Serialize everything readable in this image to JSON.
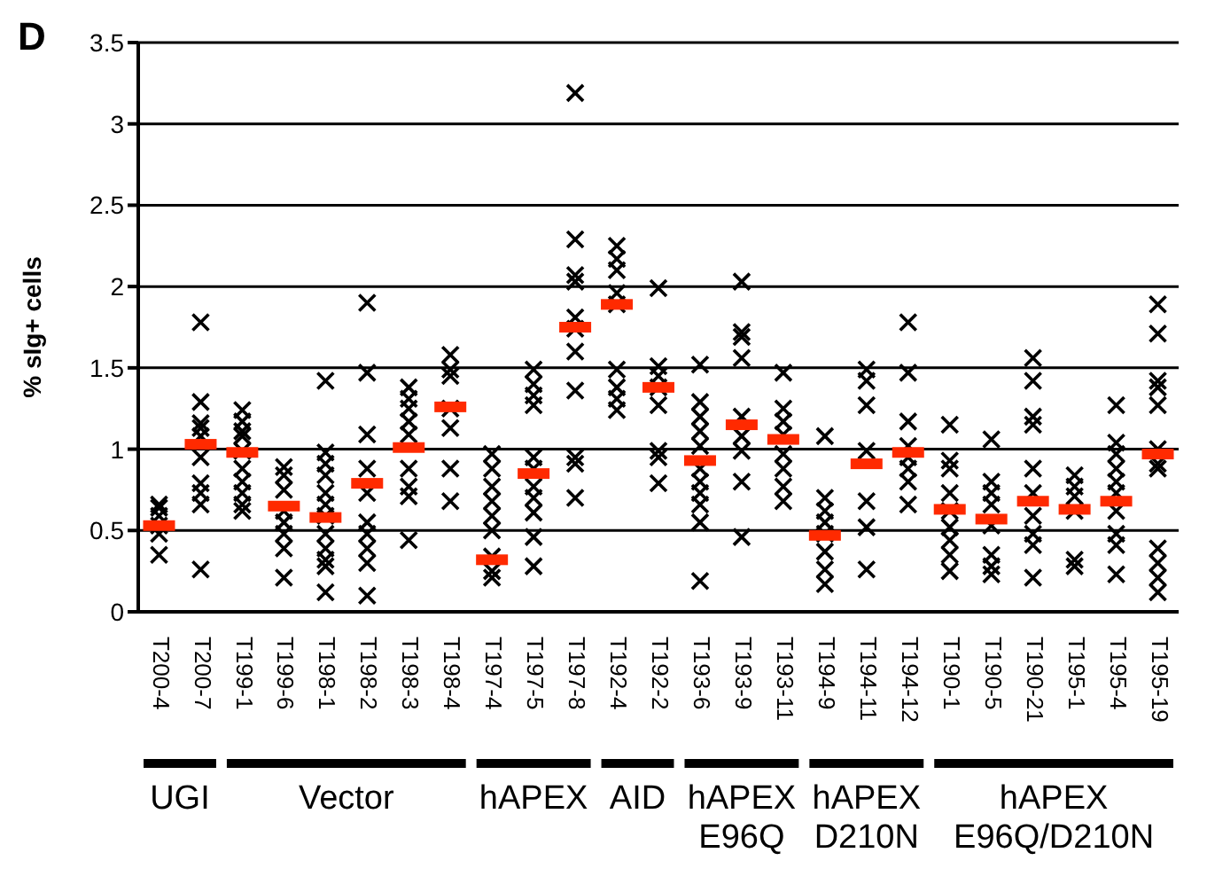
{
  "chart_data": {
    "type": "scatter",
    "ylabel": "% sIg+ cells",
    "annotations": [
      "D",
      "UGI",
      "Vector",
      "hAPEX",
      "AID",
      "hAPEX\nE96Q",
      "hAPEX\nD210N",
      "hAPEX\nE96Q/D210N"
    ],
    "categories": [
      "T200-4",
      "T200-7",
      "T199-1",
      "T199-6",
      "T198-1",
      "T198-2",
      "T198-3",
      "T198-4",
      "T197-4",
      "T197-5",
      "T197-8",
      "T192-4",
      "T192-2",
      "T193-6",
      "T193-9",
      "T193-11",
      "T194-9",
      "T194-11",
      "T194-12",
      "T190-1",
      "T190-5",
      "T190-21",
      "T195-1",
      "T195-4",
      "T195-19"
    ],
    "ylim": [
      0,
      3.5
    ],
    "yticks": [
      0,
      0.5,
      1,
      1.5,
      2,
      2.5,
      3,
      3.5
    ],
    "grid": "y",
    "series": [
      {
        "marker": "cross",
        "color": "#000000",
        "x": [
          "T200-4",
          "T200-4",
          "T200-4",
          "T200-4",
          "T200-4",
          "T200-4",
          "T200-7",
          "T200-7",
          "T200-7",
          "T200-7",
          "T200-7",
          "T200-7",
          "T200-7",
          "T200-7",
          "T200-7",
          "T200-7",
          "T199-1",
          "T199-1",
          "T199-1",
          "T199-1",
          "T199-1",
          "T199-1",
          "T199-1",
          "T199-1",
          "T199-1",
          "T199-1",
          "T199-6",
          "T199-6",
          "T199-6",
          "T199-6",
          "T199-6",
          "T199-6",
          "T199-6",
          "T199-6",
          "T198-1",
          "T198-1",
          "T198-1",
          "T198-1",
          "T198-1",
          "T198-1",
          "T198-1",
          "T198-1",
          "T198-1",
          "T198-1",
          "T198-1",
          "T198-1",
          "T198-2",
          "T198-2",
          "T198-2",
          "T198-2",
          "T198-2",
          "T198-2",
          "T198-2",
          "T198-2",
          "T198-2",
          "T198-2",
          "T198-3",
          "T198-3",
          "T198-3",
          "T198-3",
          "T198-3",
          "T198-3",
          "T198-3",
          "T198-3",
          "T198-3",
          "T198-4",
          "T198-4",
          "T198-4",
          "T198-4",
          "T198-4",
          "T198-4",
          "T198-4",
          "T197-4",
          "T197-4",
          "T197-4",
          "T197-4",
          "T197-4",
          "T197-4",
          "T197-4",
          "T197-4",
          "T197-4",
          "T197-5",
          "T197-5",
          "T197-5",
          "T197-5",
          "T197-5",
          "T197-5",
          "T197-5",
          "T197-5",
          "T197-5",
          "T197-5",
          "T197-5",
          "T197-8",
          "T197-8",
          "T197-8",
          "T197-8",
          "T197-8",
          "T197-8",
          "T197-8",
          "T197-8",
          "T197-8",
          "T197-8",
          "T197-8",
          "T192-4",
          "T192-4",
          "T192-4",
          "T192-4",
          "T192-4",
          "T192-4",
          "T192-4",
          "T192-4",
          "T192-4",
          "T192-2",
          "T192-2",
          "T192-2",
          "T192-2",
          "T192-2",
          "T192-2",
          "T192-2",
          "T192-2",
          "T193-6",
          "T193-6",
          "T193-6",
          "T193-6",
          "T193-6",
          "T193-6",
          "T193-6",
          "T193-6",
          "T193-6",
          "T193-6",
          "T193-6",
          "T193-9",
          "T193-9",
          "T193-9",
          "T193-9",
          "T193-9",
          "T193-9",
          "T193-9",
          "T193-9",
          "T193-9",
          "T193-11",
          "T193-11",
          "T193-11",
          "T193-11",
          "T193-11",
          "T193-11",
          "T193-11",
          "T193-11",
          "T194-9",
          "T194-9",
          "T194-9",
          "T194-9",
          "T194-9",
          "T194-9",
          "T194-9",
          "T194-9",
          "T194-11",
          "T194-11",
          "T194-11",
          "T194-11",
          "T194-11",
          "T194-11",
          "T194-11",
          "T194-12",
          "T194-12",
          "T194-12",
          "T194-12",
          "T194-12",
          "T194-12",
          "T194-12",
          "T194-12",
          "T190-1",
          "T190-1",
          "T190-1",
          "T190-1",
          "T190-1",
          "T190-1",
          "T190-1",
          "T190-1",
          "T190-1",
          "T190-5",
          "T190-5",
          "T190-5",
          "T190-5",
          "T190-5",
          "T190-5",
          "T190-5",
          "T190-5",
          "T190-21",
          "T190-21",
          "T190-21",
          "T190-21",
          "T190-21",
          "T190-21",
          "T190-21",
          "T190-21",
          "T190-21",
          "T190-21",
          "T195-1",
          "T195-1",
          "T195-1",
          "T195-1",
          "T195-1",
          "T195-1",
          "T195-4",
          "T195-4",
          "T195-4",
          "T195-4",
          "T195-4",
          "T195-4",
          "T195-4",
          "T195-4",
          "T195-4",
          "T195-4",
          "T195-19",
          "T195-19",
          "T195-19",
          "T195-19",
          "T195-19",
          "T195-19",
          "T195-19",
          "T195-19",
          "T195-19",
          "T195-19",
          "T195-19",
          "T195-19"
        ],
        "values": [
          0.35,
          0.48,
          0.59,
          0.64,
          0.66,
          0.53,
          1.78,
          1.29,
          1.16,
          1.13,
          1.08,
          0.95,
          0.79,
          0.73,
          0.66,
          0.26,
          1.24,
          1.17,
          1.11,
          1.08,
          0.99,
          0.88,
          0.8,
          0.73,
          0.66,
          0.62,
          0.89,
          0.84,
          0.75,
          0.62,
          0.55,
          0.48,
          0.39,
          0.21,
          1.42,
          0.98,
          0.91,
          0.84,
          0.73,
          0.66,
          0.59,
          0.48,
          0.39,
          0.32,
          0.28,
          0.12,
          1.9,
          1.47,
          1.09,
          0.88,
          0.73,
          0.55,
          0.48,
          0.39,
          0.3,
          0.1,
          1.38,
          1.31,
          1.25,
          1.17,
          1.09,
          0.88,
          0.77,
          0.71,
          0.44,
          1.58,
          1.49,
          1.45,
          1.25,
          1.13,
          0.88,
          0.68,
          0.97,
          0.88,
          0.77,
          0.68,
          0.59,
          0.5,
          0.34,
          0.25,
          0.21,
          1.49,
          1.4,
          1.33,
          1.27,
          0.95,
          0.88,
          0.77,
          0.7,
          0.61,
          0.46,
          0.28,
          3.19,
          2.29,
          2.07,
          2.03,
          1.81,
          1.74,
          1.6,
          1.36,
          0.95,
          0.91,
          0.7,
          2.25,
          2.17,
          2.1,
          1.96,
          1.89,
          1.49,
          1.38,
          1.31,
          1.24,
          1.99,
          1.51,
          1.45,
          1.38,
          1.27,
          0.99,
          0.95,
          0.79,
          1.52,
          1.29,
          1.2,
          1.11,
          1.02,
          0.88,
          0.8,
          0.73,
          0.66,
          0.55,
          0.19,
          2.03,
          1.72,
          1.69,
          1.56,
          1.2,
          1.08,
          0.99,
          0.8,
          0.46,
          1.47,
          1.25,
          1.17,
          1.09,
          0.97,
          0.88,
          0.77,
          0.68,
          1.08,
          0.7,
          0.62,
          0.55,
          0.48,
          0.37,
          0.26,
          0.17,
          1.49,
          1.42,
          1.27,
          0.99,
          0.68,
          0.52,
          0.26,
          1.78,
          1.47,
          1.17,
          1.02,
          0.95,
          0.88,
          0.8,
          0.66,
          1.15,
          0.93,
          0.88,
          0.73,
          0.62,
          0.52,
          0.44,
          0.35,
          0.25,
          1.06,
          0.8,
          0.73,
          0.66,
          0.53,
          0.35,
          0.28,
          0.23,
          1.56,
          1.42,
          1.2,
          1.15,
          0.88,
          0.73,
          0.59,
          0.48,
          0.41,
          0.21,
          0.84,
          0.77,
          0.71,
          0.62,
          0.32,
          0.28,
          1.27,
          1.04,
          0.97,
          0.88,
          0.8,
          0.73,
          0.62,
          0.48,
          0.41,
          0.23,
          1.89,
          1.71,
          1.42,
          1.38,
          1.27,
          1.0,
          0.91,
          0.88,
          0.39,
          0.3,
          0.21,
          0.12
        ]
      },
      {
        "color": "#ff2a00",
        "values": [
          0.53,
          1.03,
          0.98,
          0.65,
          0.58,
          0.79,
          1.01,
          1.26,
          0.32,
          0.85,
          1.75,
          1.89,
          1.38,
          0.93,
          1.15,
          1.06,
          0.47,
          0.91,
          0.98,
          0.63,
          0.57,
          0.68,
          0.63,
          0.68,
          0.97
        ]
      }
    ]
  }
}
